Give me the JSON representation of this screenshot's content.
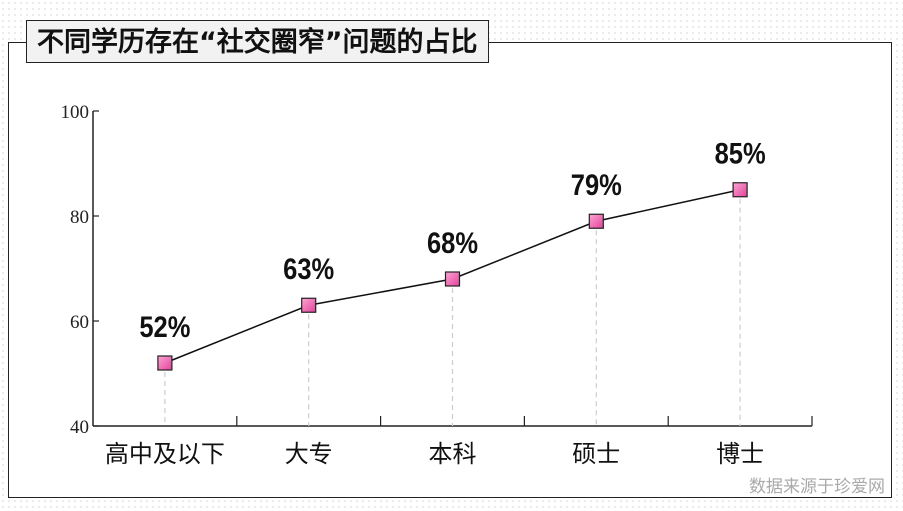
{
  "title": "不同学历存在“社交圈窄”问题的占比",
  "source": "数据来源于珍爱网",
  "chart_data": {
    "type": "line",
    "title": "不同学历存在“社交圈窄”问题的占比",
    "categories": [
      "高中及以下",
      "大专",
      "本科",
      "硕士",
      "博士"
    ],
    "values": [
      52,
      63,
      68,
      79,
      85
    ],
    "data_labels": [
      "52%",
      "63%",
      "68%",
      "79%",
      "85%"
    ],
    "ylim": [
      40,
      100
    ],
    "yticks": [
      40,
      60,
      80,
      100
    ],
    "grid": false,
    "marker": "square",
    "colors": {
      "line": "#111111",
      "marker": "#f06fb0",
      "drop_line": "#cccccc"
    }
  }
}
